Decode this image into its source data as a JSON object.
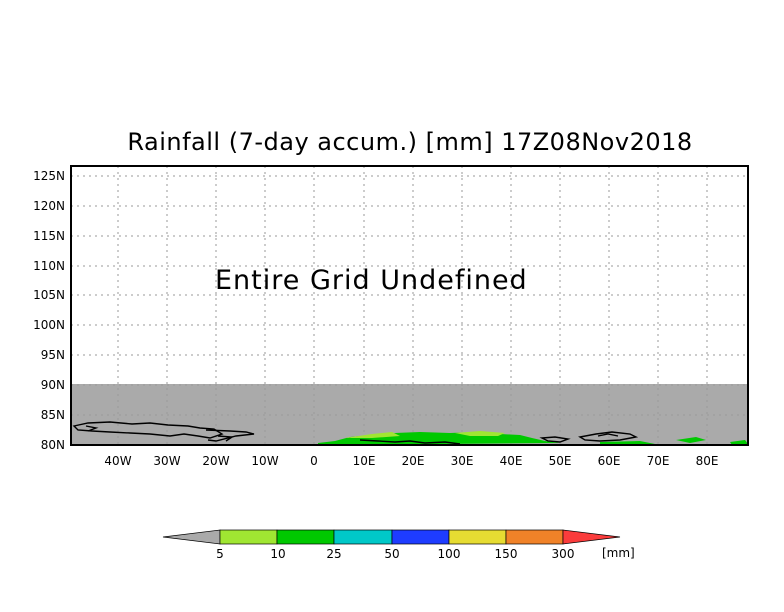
{
  "title": "Rainfall (7-day accum.) [mm] 17Z08Nov2018",
  "message": "Entire Grid Undefined",
  "map": {
    "lat_labels": [
      "125N",
      "120N",
      "115N",
      "110N",
      "105N",
      "100N",
      "95N",
      "90N",
      "85N",
      "80N"
    ],
    "lon_labels": [
      "40W",
      "30W",
      "20W",
      "10W",
      "0",
      "10E",
      "20E",
      "30E",
      "40E",
      "50E",
      "60E",
      "70E",
      "80E"
    ],
    "undefined_color": "#aaaaaa"
  },
  "colorbar": {
    "labels": [
      "5",
      "10",
      "25",
      "50",
      "100",
      "150",
      "300"
    ],
    "unit": "[mm]",
    "colors": [
      "#aaaaaa",
      "#a0e632",
      "#00c800",
      "#00c8c8",
      "#1e3cff",
      "#e6dc32",
      "#f08228",
      "#fa3c3c"
    ]
  }
}
